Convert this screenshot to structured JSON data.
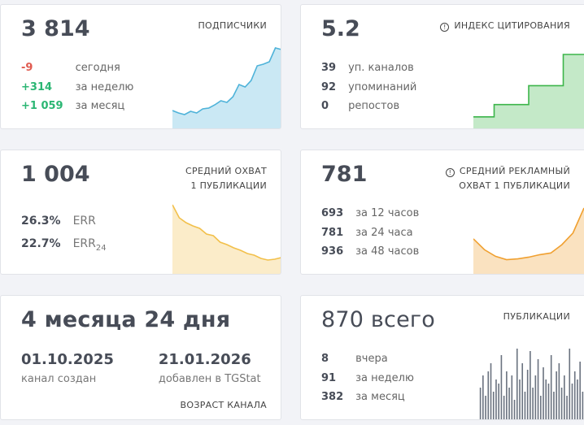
{
  "cards": [
    {
      "value": "3 814",
      "title": "ПОДПИСЧИКИ",
      "stats": [
        {
          "value": "-9",
          "label": "сегодня",
          "color": "#e05a4f"
        },
        {
          "value": "+314",
          "label": "за неделю",
          "color": "#2bb673"
        },
        {
          "value": "+1 059",
          "label": "за месяц",
          "color": "#2bb673"
        }
      ],
      "spark": {
        "type": "area",
        "color": "#4fb3d9",
        "values": [
          23,
          20,
          18,
          22,
          20,
          25,
          26,
          30,
          35,
          33,
          40,
          55,
          52,
          60,
          78,
          80,
          83,
          100,
          98
        ]
      }
    },
    {
      "value": "5.2",
      "title": "ИНДЕКС ЦИТИРОВАНИЯ",
      "stats": [
        {
          "value": "39",
          "label": "уп. каналов"
        },
        {
          "value": "92",
          "label": "упоминаний"
        },
        {
          "value": "0",
          "label": "репостов"
        }
      ],
      "spark": {
        "type": "step",
        "color": "#3cb54a",
        "values": [
          15,
          15,
          15,
          30,
          30,
          30,
          30,
          30,
          53,
          53,
          53,
          53,
          53,
          91,
          91,
          91,
          91
        ]
      }
    },
    {
      "value": "1 004",
      "title": [
        "СРЕДНИЙ ОХВАТ",
        "1 ПУБЛИКАЦИИ"
      ],
      "stats": [
        {
          "value": "26.3%",
          "label": "ERR"
        },
        {
          "value": "22.7%",
          "label": "ERR",
          "sub": "24"
        }
      ],
      "spark": {
        "type": "area",
        "color": "#f2c04b",
        "values": [
          86,
          70,
          64,
          60,
          57,
          50,
          48,
          40,
          37,
          33,
          30,
          26,
          24,
          20,
          18,
          19,
          21
        ]
      }
    },
    {
      "value": "781",
      "title": [
        "СРЕДНИЙ РЕКЛАМНЫЙ",
        "ОХВАТ 1 ПУБЛИКАЦИИ"
      ],
      "stats": [
        {
          "value": "693",
          "label": "за 12 часов"
        },
        {
          "value": "781",
          "label": "за 24 часа"
        },
        {
          "value": "936",
          "label": "за 48 часов"
        }
      ],
      "spark": {
        "type": "area",
        "color": "#f0a030",
        "values": [
          43,
          30,
          22,
          18,
          19,
          21,
          24,
          26,
          36,
          50,
          80
        ]
      }
    },
    {
      "value": "4 месяца 24 дня",
      "title": "ВОЗРАСТ КАНАЛА",
      "dates": [
        {
          "value": "01.10.2025",
          "label": "канал создан"
        },
        {
          "value": "21.01.2026",
          "label": "добавлен в TGStat"
        }
      ]
    },
    {
      "value": "870 всего",
      "title": "ПУБЛИКАЦИИ",
      "stats": [
        {
          "value": "8",
          "label": "вчера"
        },
        {
          "value": "91",
          "label": "за неделю"
        },
        {
          "value": "382",
          "label": "за месяц"
        }
      ],
      "spark": {
        "type": "bars",
        "color": "#6b7380",
        "values": [
          40,
          55,
          30,
          60,
          70,
          35,
          50,
          45,
          80,
          30,
          60,
          40,
          55,
          25,
          88,
          50,
          70,
          35,
          62,
          85,
          40,
          55,
          75,
          30,
          65,
          50,
          45,
          80,
          35,
          60,
          70,
          40,
          55,
          30,
          88,
          45,
          60,
          50,
          72,
          35
        ]
      }
    }
  ]
}
